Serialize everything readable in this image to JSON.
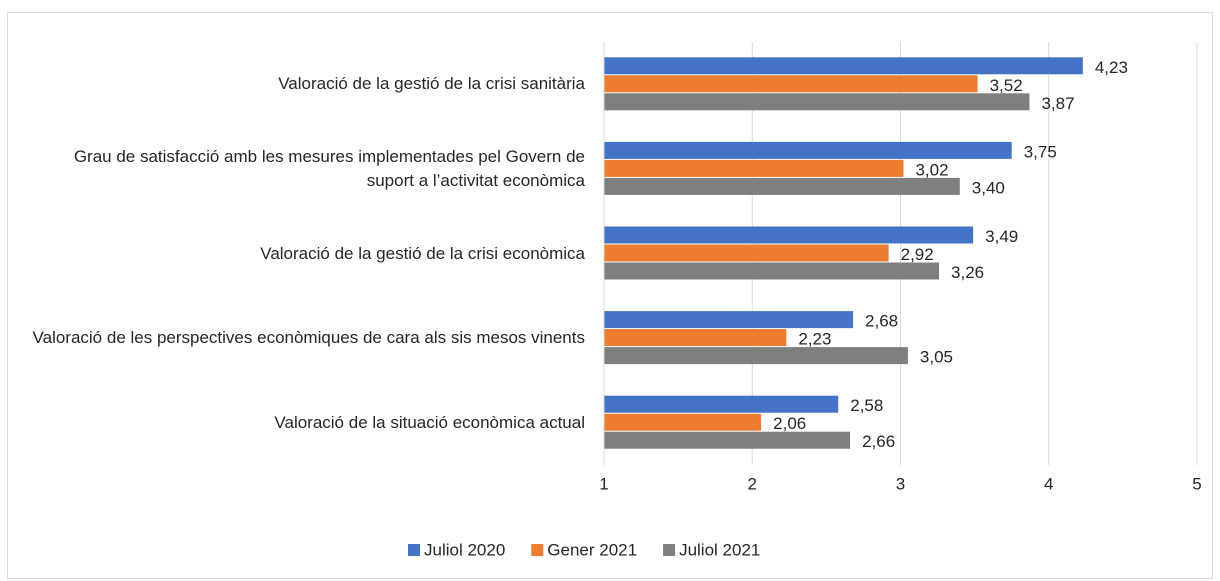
{
  "chart_data": {
    "type": "hbar",
    "categories": [
      "Valoració de la gestió de la crisi sanitària",
      "Grau de satisfacció amb les mesures implementades pel Govern de suport a l’activitat econòmica",
      "Valoració de la gestió de la crisi econòmica",
      "Valoració de les perspectives econòmiques de cara als sis mesos vinents",
      "Valoració de la situació econòmica actual"
    ],
    "series": [
      {
        "name": "Juliol 2020",
        "color": "#4472c4",
        "values": [
          4.23,
          3.75,
          3.49,
          2.68,
          2.58
        ],
        "value_labels": [
          "4,23",
          "3,75",
          "3,49",
          "2,68",
          "2,58"
        ]
      },
      {
        "name": "Gener 2021",
        "color": "#ed7d31",
        "values": [
          3.52,
          3.02,
          2.92,
          2.23,
          2.06
        ],
        "value_labels": [
          "3,52",
          "3,02",
          "2,92",
          "2,23",
          "2,06"
        ]
      },
      {
        "name": "Juliol 2021",
        "color": "#7f7f7f",
        "values": [
          3.87,
          3.4,
          3.26,
          3.05,
          2.66
        ],
        "value_labels": [
          "3,87",
          "3,40",
          "3,26",
          "3,05",
          "2,66"
        ]
      }
    ],
    "xlim": [
      1,
      5
    ],
    "xticks": [
      1,
      2,
      3,
      4,
      5
    ],
    "grid": true,
    "legend": "bottom"
  }
}
